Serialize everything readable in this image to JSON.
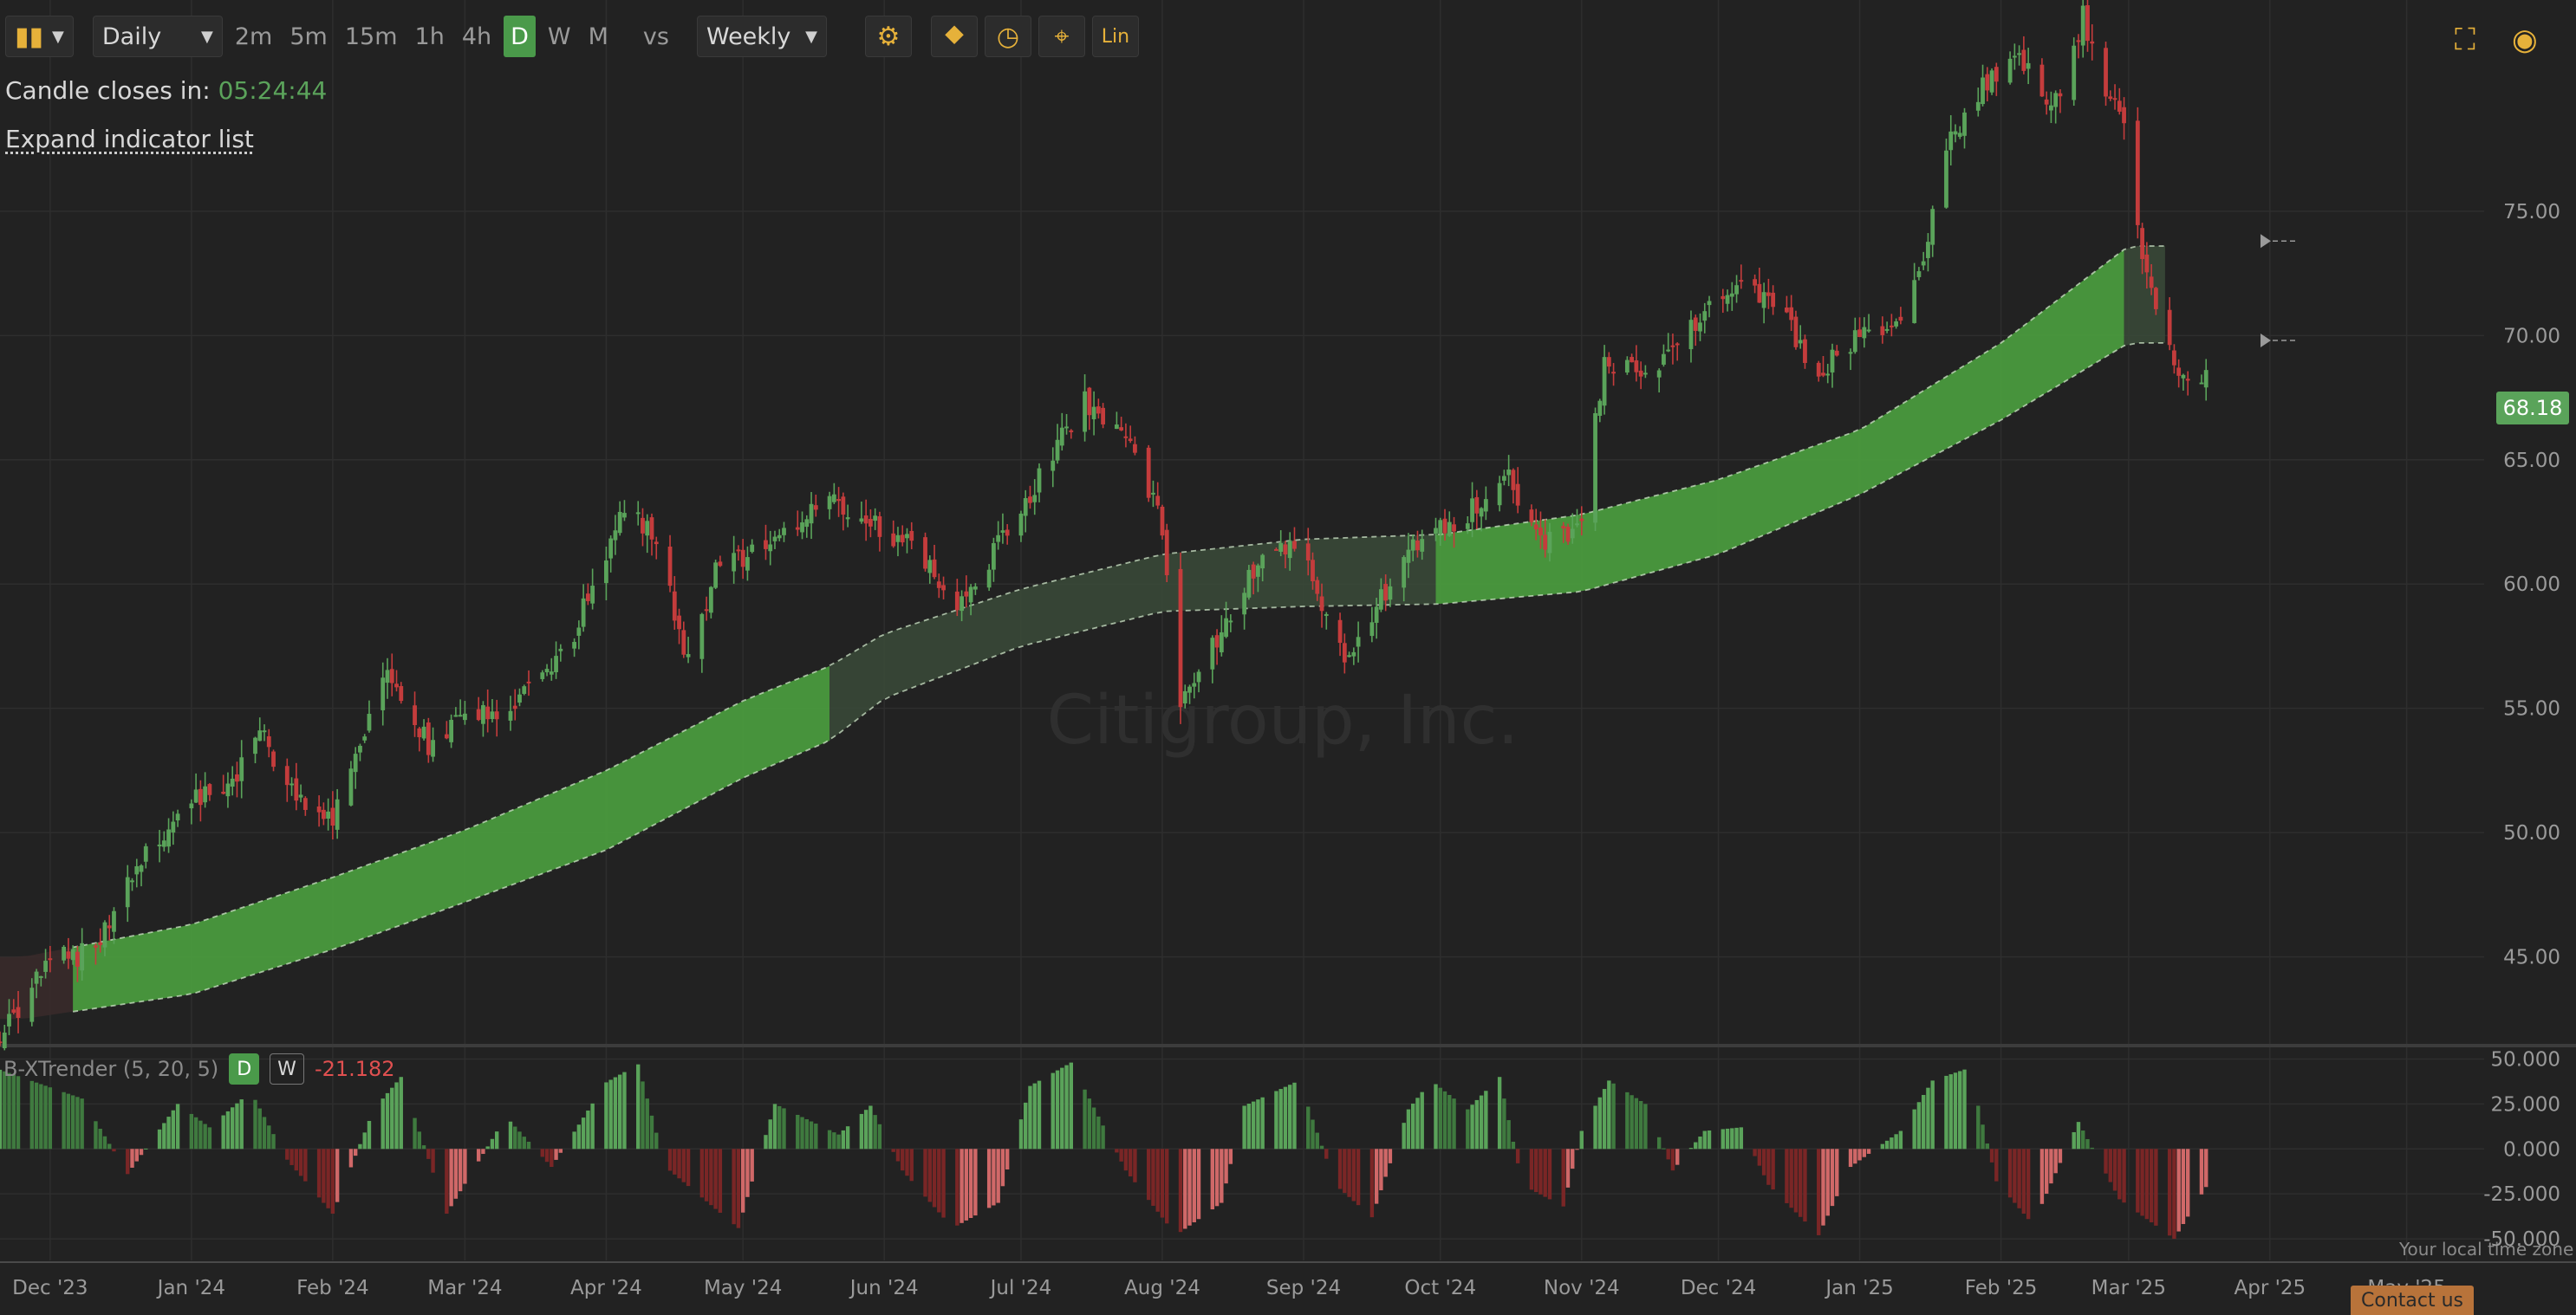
{
  "toolbar": {
    "chart_type_icon": "candlestick-icon",
    "interval_label": "Daily",
    "timeframes": [
      "2m",
      "5m",
      "15m",
      "1h",
      "4h",
      "D",
      "W",
      "M"
    ],
    "active_timeframe": "D",
    "vs_label": "vs",
    "compare_label": "Weekly",
    "tool_icons": [
      "gear-icon",
      "indicator-icon",
      "clock-icon",
      "crosshair-icon"
    ],
    "scale_label": "Lin",
    "right_icons": [
      "fullscreen-icon",
      "camera-icon"
    ]
  },
  "info": {
    "candle_label": "Candle closes in:",
    "countdown": "05:24:44",
    "expand_label": "Expand indicator list"
  },
  "watermark": "Citigroup, Inc.",
  "last_price": "68.18",
  "indicator": {
    "name": "B-XTrender (5, 20, 5)",
    "btn_d": "D",
    "btn_w": "W",
    "value": "-21.182"
  },
  "footer": {
    "timezone_note": "Your local time zone",
    "contact_label": "Contact us"
  },
  "colors": {
    "background": "#222222",
    "bull": "#5aa35a",
    "bear": "#c43c3c",
    "band_strong": "#4a9a3e",
    "band_weak": "#3a4a38",
    "band_red": "#3a2a2a",
    "accent": "#e6b13a"
  },
  "chart_data": [
    {
      "type": "candlestick",
      "title": "Citigroup, Inc.",
      "x_tick_labels": [
        "Dec '23",
        "Jan '24",
        "Feb '24",
        "Mar '24",
        "Apr '24",
        "May '24",
        "Jun '24",
        "Jul '24",
        "Aug '24",
        "Sep '24",
        "Oct '24",
        "Nov '24",
        "Dec '24",
        "Jan '25",
        "Feb '25",
        "Mar '25",
        "Apr '25",
        "May '25"
      ],
      "x_range": [
        "2023-11-20",
        "2025-05-18"
      ],
      "y_tick_labels": [
        "45.00",
        "50.00",
        "55.00",
        "60.00",
        "65.00",
        "70.00",
        "75.00"
      ],
      "ylim": [
        41.5,
        83.5
      ],
      "scale": "linear",
      "grid": true,
      "price_path": [
        [
          "2023-11-20",
          41.8
        ],
        [
          "2023-12-01",
          44.8
        ],
        [
          "2023-12-10",
          45.2
        ],
        [
          "2023-12-20",
          48.5
        ],
        [
          "2023-12-31",
          51.2
        ],
        [
          "2024-01-08",
          51.6
        ],
        [
          "2024-01-16",
          54.0
        ],
        [
          "2024-01-24",
          51.5
        ],
        [
          "2024-02-01",
          50.5
        ],
        [
          "2024-02-08",
          53.8
        ],
        [
          "2024-02-12",
          56.5
        ],
        [
          "2024-02-22",
          53.5
        ],
        [
          "2024-03-01",
          54.6
        ],
        [
          "2024-03-12",
          55.2
        ],
        [
          "2024-03-25",
          58.0
        ],
        [
          "2024-04-05",
          63.2
        ],
        [
          "2024-04-12",
          61.8
        ],
        [
          "2024-04-19",
          56.8
        ],
        [
          "2024-04-25",
          60.6
        ],
        [
          "2024-05-07",
          61.5
        ],
        [
          "2024-05-20",
          63.3
        ],
        [
          "2024-05-28",
          62.6
        ],
        [
          "2024-06-07",
          61.5
        ],
        [
          "2024-06-17",
          59.0
        ],
        [
          "2024-06-24",
          61.0
        ],
        [
          "2024-07-03",
          63.5
        ],
        [
          "2024-07-10",
          66.0
        ],
        [
          "2024-07-15",
          67.3
        ],
        [
          "2024-07-25",
          65.5
        ],
        [
          "2024-07-31",
          63.0
        ],
        [
          "2024-08-05",
          55.5
        ],
        [
          "2024-08-12",
          57.5
        ],
        [
          "2024-08-20",
          60.5
        ],
        [
          "2024-08-30",
          61.8
        ],
        [
          "2024-09-10",
          57.0
        ],
        [
          "2024-09-18",
          59.5
        ],
        [
          "2024-09-27",
          62.0
        ],
        [
          "2024-10-05",
          62.5
        ],
        [
          "2024-10-15",
          64.5
        ],
        [
          "2024-10-24",
          61.5
        ],
        [
          "2024-11-01",
          62.5
        ],
        [
          "2024-11-06",
          69.0
        ],
        [
          "2024-11-15",
          68.2
        ],
        [
          "2024-11-25",
          70.5
        ],
        [
          "2024-12-06",
          72.3
        ],
        [
          "2024-12-16",
          70.5
        ],
        [
          "2024-12-23",
          68.5
        ],
        [
          "2024-12-31",
          70.0
        ],
        [
          "2025-01-10",
          70.8
        ],
        [
          "2025-01-15",
          73.0
        ],
        [
          "2025-01-21",
          78.0
        ],
        [
          "2025-01-30",
          80.5
        ],
        [
          "2025-02-06",
          81.0
        ],
        [
          "2025-02-12",
          78.8
        ],
        [
          "2025-02-19",
          82.8
        ],
        [
          "2025-02-25",
          79.5
        ],
        [
          "2025-03-01",
          78.5
        ],
        [
          "2025-03-03",
          74.0
        ],
        [
          "2025-03-08",
          70.5
        ],
        [
          "2025-03-13",
          68.0
        ],
        [
          "2025-03-18",
          68.18
        ]
      ],
      "cloud": {
        "upper": [
          [
            "2023-11-25",
            45.0
          ],
          [
            "2024-01-01",
            46.3
          ],
          [
            "2024-02-01",
            48.2
          ],
          [
            "2024-03-01",
            50.1
          ],
          [
            "2024-04-01",
            52.5
          ],
          [
            "2024-05-01",
            55.3
          ],
          [
            "2024-05-20",
            56.7
          ],
          [
            "2024-06-01",
            58.0
          ],
          [
            "2024-07-01",
            59.8
          ],
          [
            "2024-08-01",
            61.2
          ],
          [
            "2024-09-01",
            61.8
          ],
          [
            "2024-10-01",
            62.0
          ],
          [
            "2024-11-01",
            62.8
          ],
          [
            "2024-12-01",
            64.2
          ],
          [
            "2025-01-01",
            66.2
          ],
          [
            "2025-02-01",
            69.7
          ],
          [
            "2025-03-01",
            73.6
          ]
        ],
        "lower": [
          [
            "2023-11-25",
            42.5
          ],
          [
            "2024-01-01",
            43.5
          ],
          [
            "2024-02-01",
            45.3
          ],
          [
            "2024-03-01",
            47.2
          ],
          [
            "2024-04-01",
            49.3
          ],
          [
            "2024-05-01",
            52.2
          ],
          [
            "2024-05-20",
            53.7
          ],
          [
            "2024-06-01",
            55.4
          ],
          [
            "2024-07-01",
            57.5
          ],
          [
            "2024-08-01",
            58.9
          ],
          [
            "2024-09-01",
            59.1
          ],
          [
            "2024-10-01",
            59.2
          ],
          [
            "2024-11-01",
            59.7
          ],
          [
            "2024-12-01",
            61.2
          ],
          [
            "2025-01-01",
            63.6
          ],
          [
            "2025-02-01",
            66.6
          ],
          [
            "2025-03-01",
            69.7
          ]
        ],
        "segments": [
          {
            "from": "2023-11-20",
            "to": "2023-12-06",
            "color": "red"
          },
          {
            "from": "2023-12-06",
            "to": "2024-05-20",
            "color": "strong"
          },
          {
            "from": "2024-05-20",
            "to": "2024-09-30",
            "color": "weak"
          },
          {
            "from": "2024-09-30",
            "to": "2025-02-28",
            "color": "strong"
          },
          {
            "from": "2025-02-28",
            "to": "2025-03-09",
            "color": "weak"
          }
        ]
      }
    },
    {
      "type": "bar",
      "title": "B-XTrender (5, 20, 5)",
      "y_tick_labels": [
        "50.000",
        "25.000",
        "0.000",
        "-25.000",
        "-50.000"
      ],
      "ylim": [
        -62,
        56
      ],
      "oscillator_path": [
        [
          "2023-11-20",
          44
        ],
        [
          "2023-12-08",
          28
        ],
        [
          "2023-12-18",
          -14
        ],
        [
          "2023-12-29",
          25
        ],
        [
          "2024-01-05",
          12
        ],
        [
          "2024-01-14",
          32
        ],
        [
          "2024-01-22",
          -6
        ],
        [
          "2024-02-01",
          -36
        ],
        [
          "2024-02-10",
          22
        ],
        [
          "2024-02-16",
          40
        ],
        [
          "2024-02-26",
          -36
        ],
        [
          "2024-03-10",
          18
        ],
        [
          "2024-03-20",
          -10
        ],
        [
          "2024-04-01",
          37
        ],
        [
          "2024-04-08",
          47
        ],
        [
          "2024-04-14",
          -10
        ],
        [
          "2024-04-30",
          -44
        ],
        [
          "2024-05-08",
          25
        ],
        [
          "2024-05-22",
          8
        ],
        [
          "2024-05-29",
          24
        ],
        [
          "2024-06-05",
          -12
        ],
        [
          "2024-06-16",
          -44
        ],
        [
          "2024-06-26",
          -30
        ],
        [
          "2024-07-03",
          35
        ],
        [
          "2024-07-12",
          48
        ],
        [
          "2024-07-24",
          -12
        ],
        [
          "2024-08-04",
          -48
        ],
        [
          "2024-08-14",
          -30
        ],
        [
          "2024-08-19",
          24
        ],
        [
          "2024-08-31",
          38
        ],
        [
          "2024-09-08",
          -20
        ],
        [
          "2024-09-16",
          -38
        ],
        [
          "2024-09-24",
          22
        ],
        [
          "2024-09-29",
          38
        ],
        [
          "2024-10-07",
          22
        ],
        [
          "2024-10-14",
          40
        ],
        [
          "2024-10-19",
          -20
        ],
        [
          "2024-10-28",
          -32
        ],
        [
          "2024-11-01",
          10
        ],
        [
          "2024-11-07",
          38
        ],
        [
          "2024-11-15",
          25
        ],
        [
          "2024-11-21",
          -12
        ],
        [
          "2024-11-28",
          10
        ],
        [
          "2024-12-06",
          12
        ],
        [
          "2024-12-12",
          -20
        ],
        [
          "2024-12-23",
          -48
        ],
        [
          "2024-12-30",
          -10
        ],
        [
          "2025-01-10",
          10
        ],
        [
          "2025-01-17",
          38
        ],
        [
          "2025-01-25",
          45
        ],
        [
          "2025-01-31",
          -18
        ],
        [
          "2025-02-08",
          -42
        ],
        [
          "2025-02-18",
          15
        ],
        [
          "2025-02-27",
          -28
        ],
        [
          "2025-03-11",
          -50
        ],
        [
          "2025-03-18",
          -21.182
        ]
      ]
    }
  ]
}
